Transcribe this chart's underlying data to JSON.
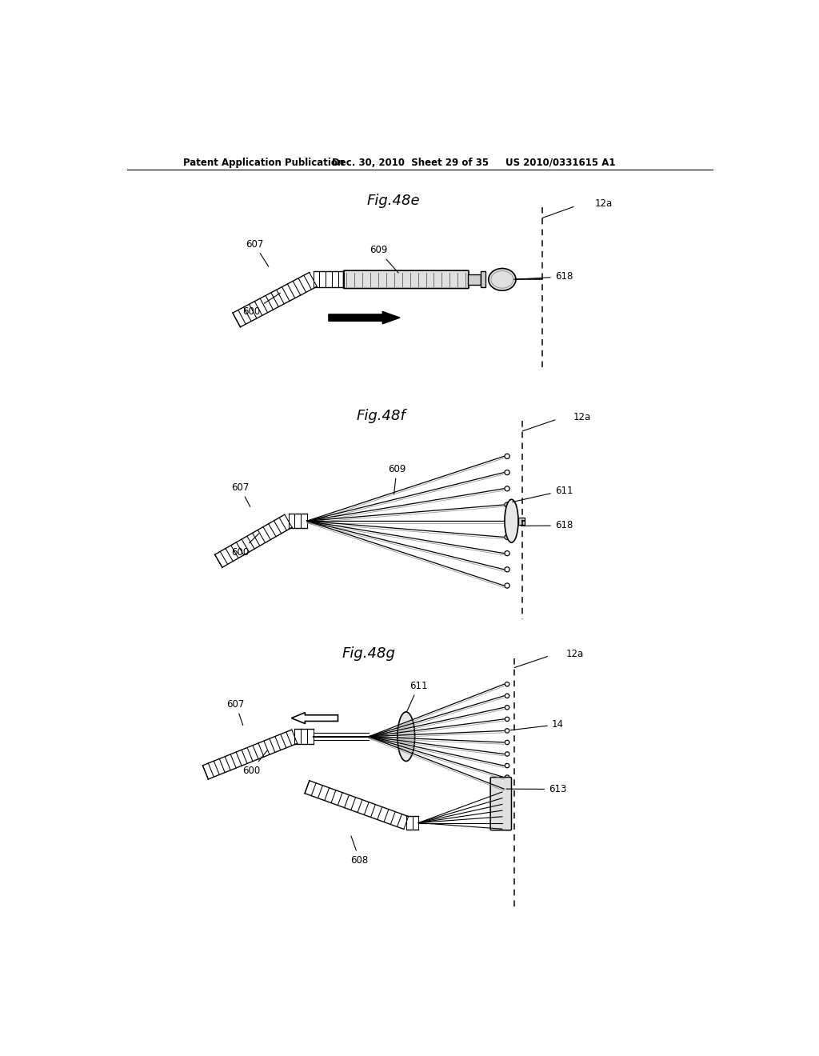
{
  "bg_color": "#ffffff",
  "header_left": "Patent Application Publication",
  "header_mid": "Dec. 30, 2010  Sheet 29 of 35",
  "header_right": "US 2010/0331615 A1",
  "fig_titles": [
    "Fig.48e",
    "Fig.48f",
    "Fig.48g"
  ]
}
